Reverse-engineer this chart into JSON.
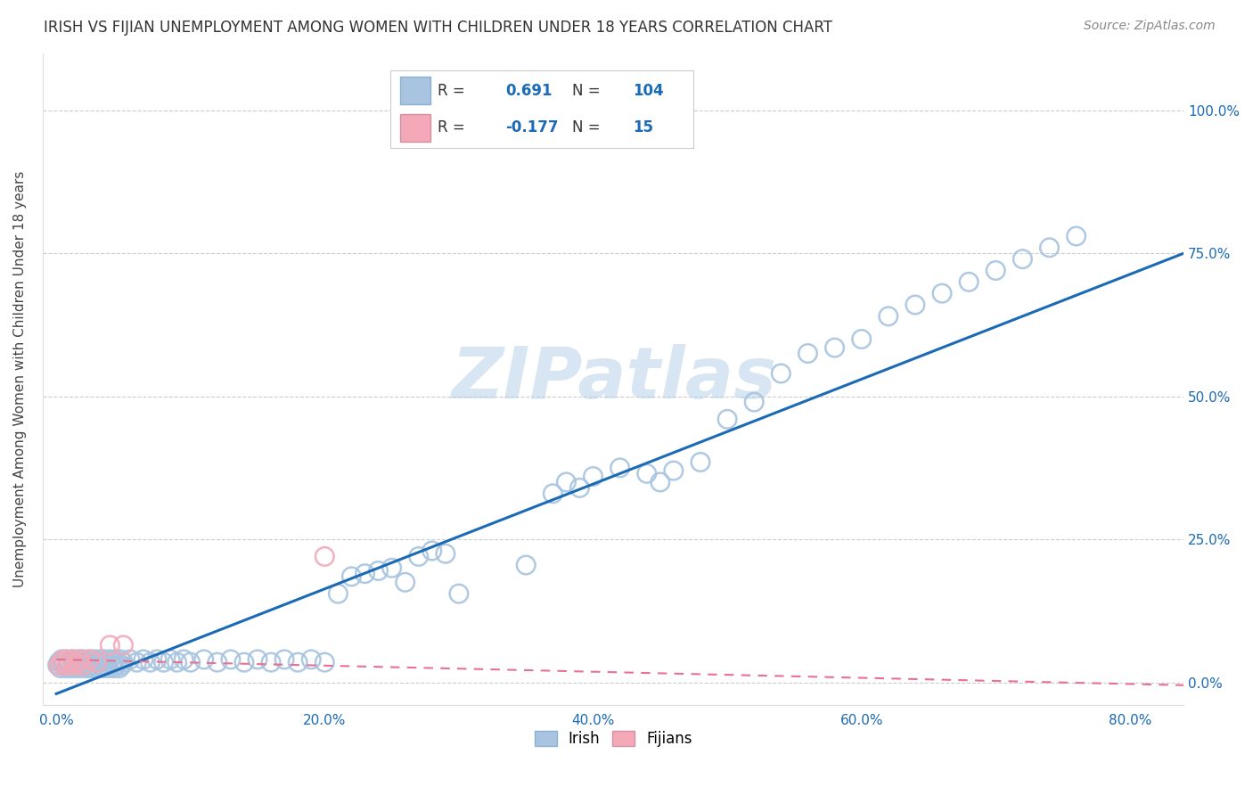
{
  "title": "IRISH VS FIJIAN UNEMPLOYMENT AMONG WOMEN WITH CHILDREN UNDER 18 YEARS CORRELATION CHART",
  "source": "Source: ZipAtlas.com",
  "xlabel_ticks": [
    "0.0%",
    "20.0%",
    "40.0%",
    "60.0%",
    "80.0%"
  ],
  "xlabel_vals": [
    0.0,
    0.2,
    0.4,
    0.6,
    0.8
  ],
  "ylabel": "Unemployment Among Women with Children Under 18 years",
  "ylabel_ticks": [
    "0.0%",
    "25.0%",
    "50.0%",
    "75.0%",
    "100.0%"
  ],
  "ylabel_vals": [
    0.0,
    0.25,
    0.5,
    0.75,
    1.0
  ],
  "xlim": [
    -0.01,
    0.84
  ],
  "ylim": [
    -0.04,
    1.1
  ],
  "irish_color": "#a8c4e0",
  "fijian_color": "#f4a8b8",
  "irish_line_color": "#1a6ab5",
  "fijian_line_color": "#e87090",
  "watermark": "ZIPatlas",
  "title_fontsize": 12,
  "source_fontsize": 10,
  "tick_fontsize": 11,
  "axis_label_fontsize": 11,
  "irish_scatter_x": [
    0.001,
    0.002,
    0.003,
    0.004,
    0.005,
    0.006,
    0.007,
    0.008,
    0.009,
    0.01,
    0.011,
    0.012,
    0.013,
    0.014,
    0.015,
    0.016,
    0.017,
    0.018,
    0.019,
    0.02,
    0.021,
    0.022,
    0.023,
    0.024,
    0.025,
    0.026,
    0.027,
    0.028,
    0.029,
    0.03,
    0.031,
    0.032,
    0.033,
    0.034,
    0.035,
    0.036,
    0.037,
    0.038,
    0.039,
    0.04,
    0.041,
    0.042,
    0.043,
    0.044,
    0.045,
    0.046,
    0.047,
    0.048,
    0.049,
    0.05,
    0.055,
    0.06,
    0.065,
    0.07,
    0.075,
    0.08,
    0.085,
    0.09,
    0.095,
    0.1,
    0.11,
    0.12,
    0.13,
    0.14,
    0.15,
    0.16,
    0.17,
    0.18,
    0.19,
    0.2,
    0.21,
    0.22,
    0.23,
    0.24,
    0.25,
    0.26,
    0.27,
    0.28,
    0.29,
    0.3,
    0.35,
    0.37,
    0.38,
    0.39,
    0.4,
    0.42,
    0.44,
    0.45,
    0.46,
    0.48,
    0.5,
    0.52,
    0.54,
    0.56,
    0.58,
    0.6,
    0.62,
    0.64,
    0.66,
    0.68,
    0.7,
    0.72,
    0.74,
    0.76
  ],
  "irish_scatter_y": [
    0.03,
    0.035,
    0.025,
    0.04,
    0.03,
    0.035,
    0.025,
    0.04,
    0.03,
    0.035,
    0.025,
    0.04,
    0.03,
    0.035,
    0.025,
    0.04,
    0.03,
    0.035,
    0.025,
    0.04,
    0.03,
    0.035,
    0.025,
    0.04,
    0.03,
    0.035,
    0.025,
    0.04,
    0.03,
    0.035,
    0.025,
    0.04,
    0.03,
    0.035,
    0.025,
    0.04,
    0.03,
    0.035,
    0.025,
    0.04,
    0.03,
    0.035,
    0.025,
    0.04,
    0.03,
    0.035,
    0.025,
    0.04,
    0.03,
    0.035,
    0.04,
    0.035,
    0.04,
    0.035,
    0.04,
    0.035,
    0.04,
    0.035,
    0.04,
    0.035,
    0.04,
    0.035,
    0.04,
    0.035,
    0.04,
    0.035,
    0.04,
    0.035,
    0.04,
    0.035,
    0.155,
    0.185,
    0.19,
    0.195,
    0.2,
    0.175,
    0.22,
    0.23,
    0.225,
    0.155,
    0.205,
    0.33,
    0.35,
    0.34,
    0.36,
    0.375,
    0.365,
    0.35,
    0.37,
    0.385,
    0.46,
    0.49,
    0.54,
    0.575,
    0.585,
    0.6,
    0.64,
    0.66,
    0.68,
    0.7,
    0.72,
    0.74,
    0.76,
    0.78
  ],
  "fijian_scatter_x": [
    0.002,
    0.004,
    0.006,
    0.008,
    0.01,
    0.012,
    0.014,
    0.016,
    0.018,
    0.02,
    0.025,
    0.03,
    0.04,
    0.05,
    0.2
  ],
  "fijian_scatter_y": [
    0.03,
    0.035,
    0.04,
    0.03,
    0.035,
    0.04,
    0.03,
    0.035,
    0.04,
    0.03,
    0.04,
    0.035,
    0.065,
    0.065,
    0.22
  ],
  "irish_line_x0": 0.0,
  "irish_line_y0": -0.02,
  "irish_line_x1": 0.84,
  "irish_line_y1": 0.75,
  "fijian_line_x0": 0.0,
  "fijian_line_y0": 0.04,
  "fijian_line_x1": 0.84,
  "fijian_line_y1": -0.005
}
